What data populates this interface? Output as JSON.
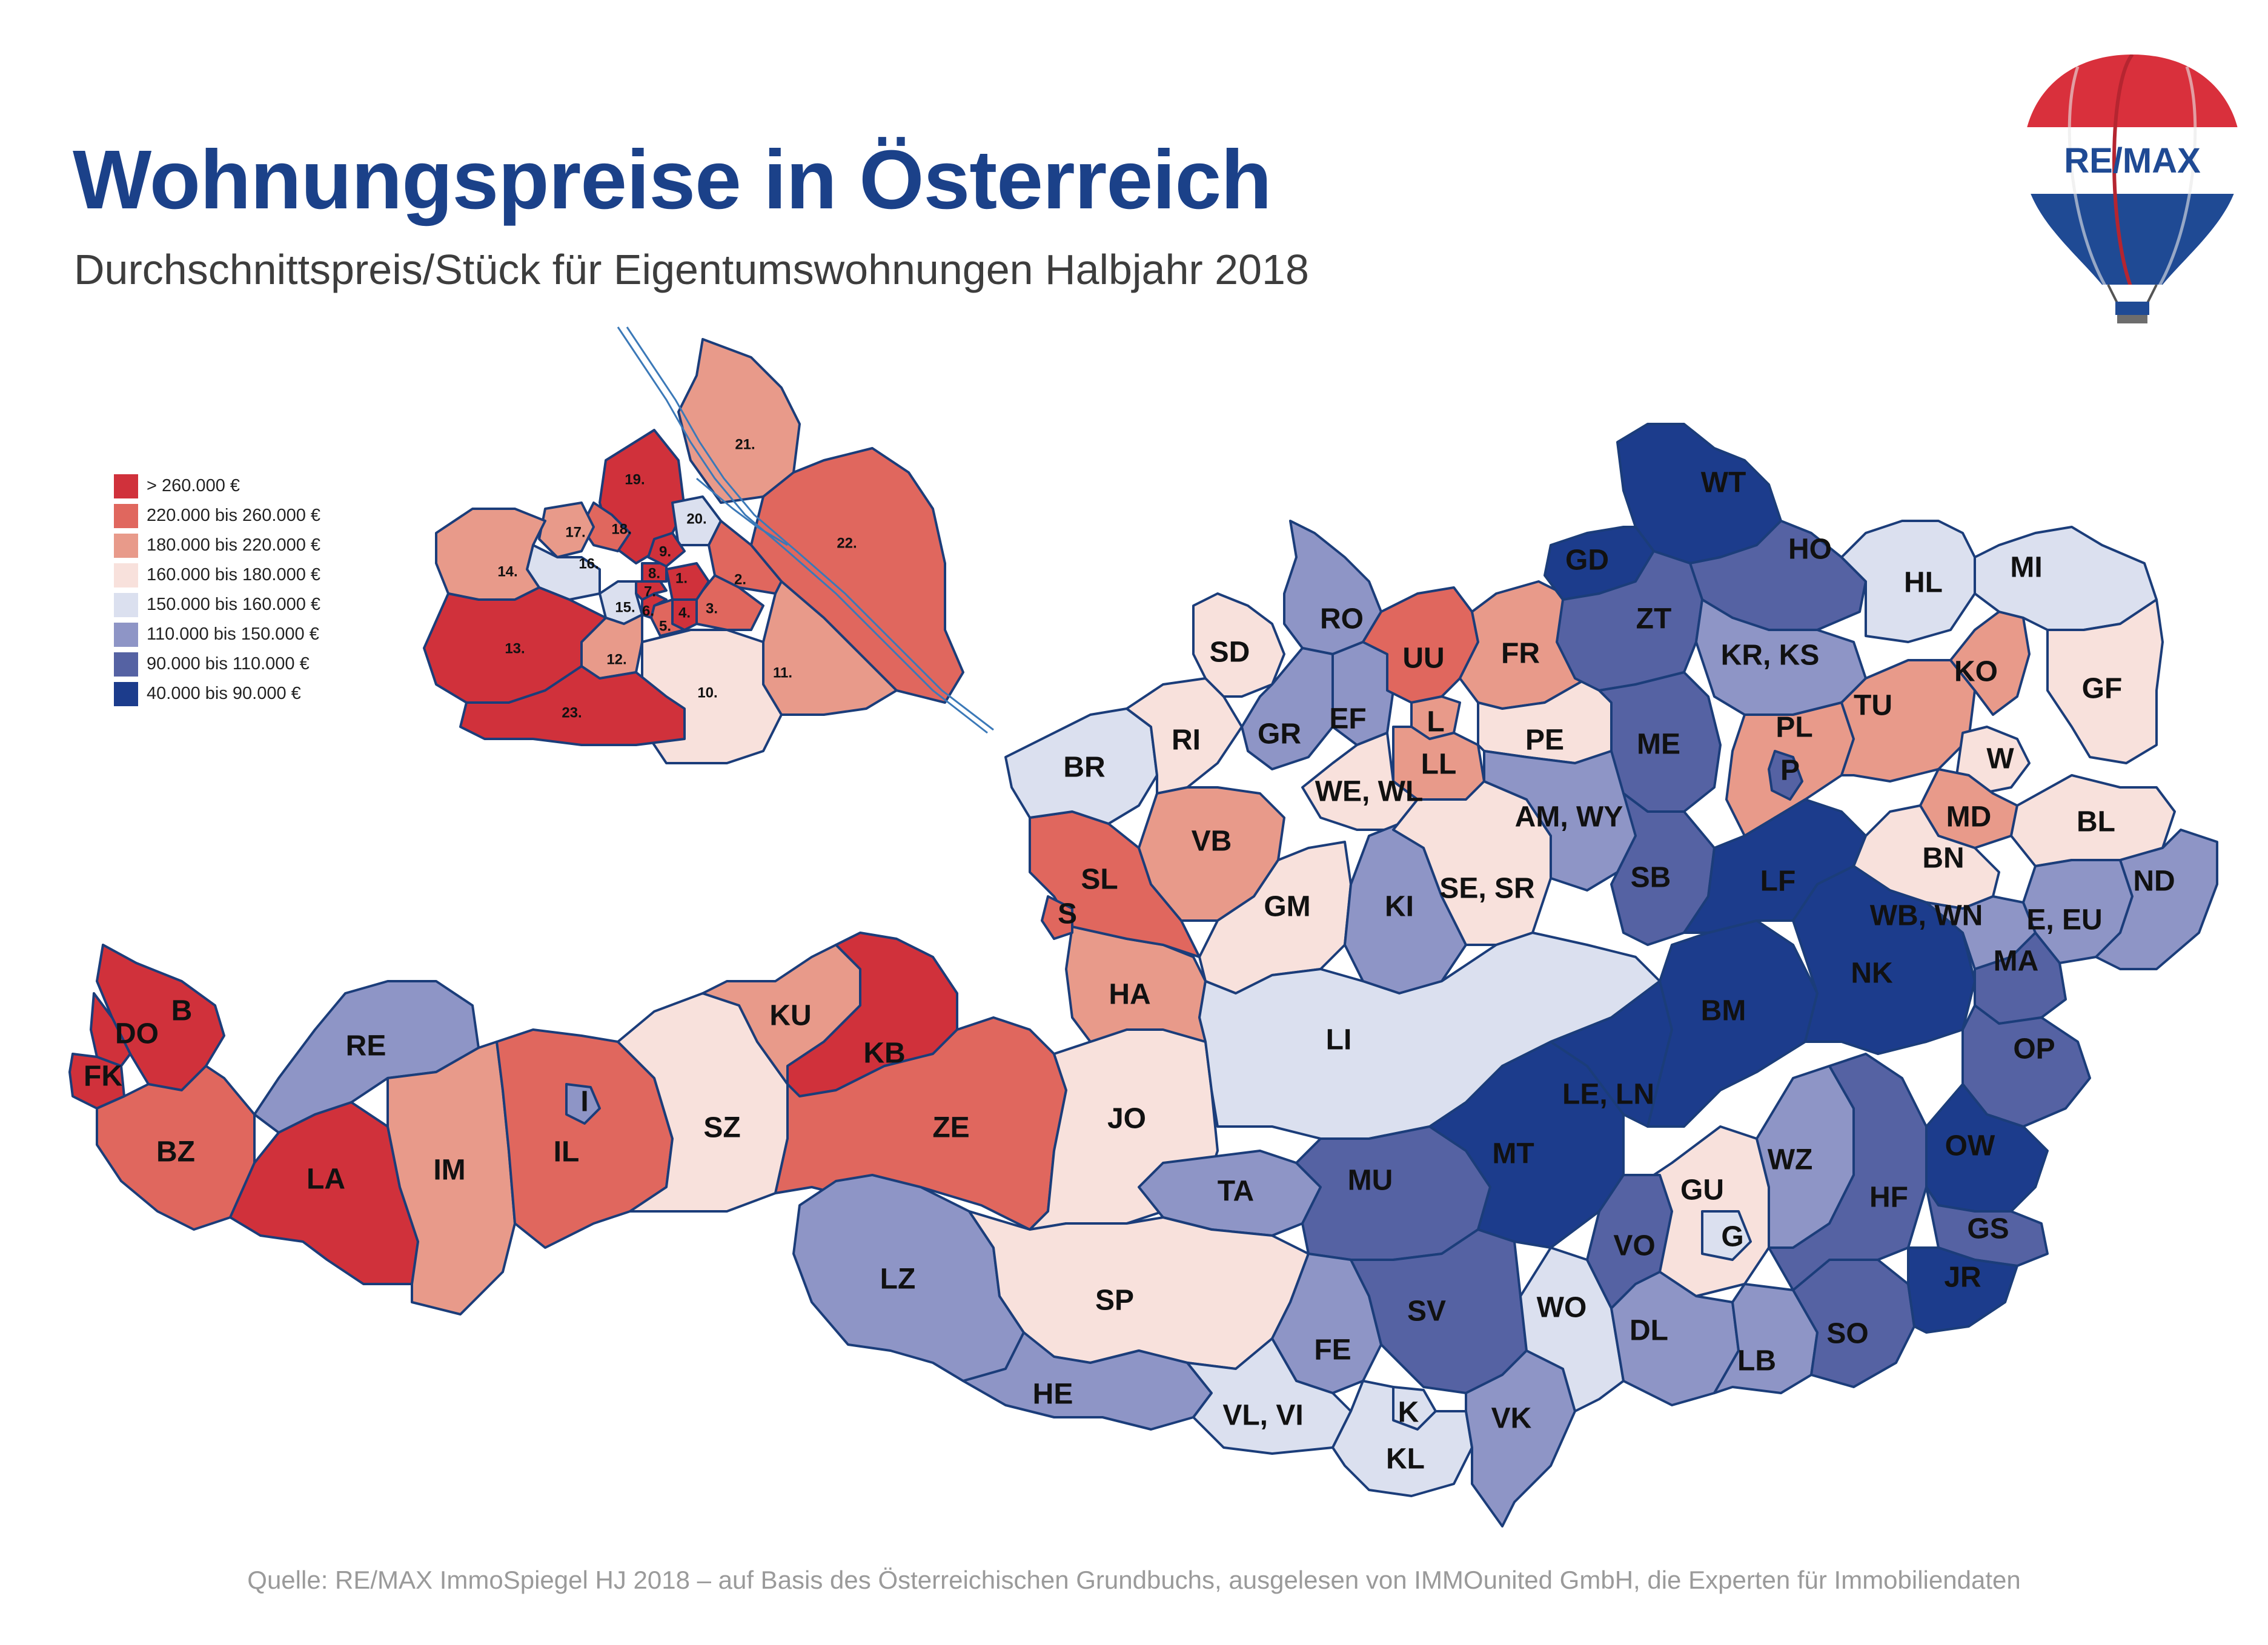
{
  "title": "Wohnungspreise in Österreich",
  "subtitle": "Durchschnittspreis/Stück für Eigentumswohnungen Halbjahr 2018",
  "logo_text": "RE/MAX",
  "source": "Quelle: RE/MAX ImmoSpiegel HJ 2018 – auf Basis des Österreichischen Grundbuchs, ausgelesen von IMMOunited GmbH, die Experten für Immobiliendaten",
  "legend": [
    {
      "label": "> 260.000 €",
      "color": "#d0313b"
    },
    {
      "label": "220.000 bis 260.000 €",
      "color": "#e0675e"
    },
    {
      "label": "180.000 bis 220.000 €",
      "color": "#e89a8a"
    },
    {
      "label": "160.000 bis 180.000 €",
      "color": "#f8e1dc"
    },
    {
      "label": "150.000 bis 160.000 €",
      "color": "#dbe0ef"
    },
    {
      "label": "110.000 bis 150.000 €",
      "color": "#8e95c6"
    },
    {
      "label": "90.000 bis 110.000 €",
      "color": "#5562a3"
    },
    {
      "label": "40.000 bis 90.000 €",
      "color": "#1c3c8c"
    }
  ],
  "regions": {
    "B": 0,
    "DO": 0,
    "FK": 0,
    "BZ": 1,
    "RE": 5,
    "LA": 0,
    "IM": 2,
    "IL": 1,
    "I": 5,
    "SZ": 3,
    "KU": 2,
    "KB": 0,
    "ZE": 1,
    "JO": 3,
    "HA": 2,
    "SL": 1,
    "S": 1,
    "BR": 4,
    "RI": 3,
    "SD": 3,
    "RO": 5,
    "GR": 5,
    "EF": 5,
    "UU": 1,
    "FR": 2,
    "L": 2,
    "LL": 2,
    "PE": 3,
    "WE, WL": 3,
    "VB": 2,
    "GM": 3,
    "KI": 5,
    "SE, SR": 3,
    "AM, WY": 5,
    "LI": 4,
    "TA": 5,
    "MU": 6,
    "LZ": 5,
    "SP": 3,
    "HE": 5,
    "FE": 5,
    "VL, VI": 4,
    "K": 4,
    "KL": 4,
    "SV": 6,
    "VK": 5,
    "WO": 4,
    "MT": 7,
    "LE, LN": 7,
    "BM": 7,
    "GU": 3,
    "G": 4,
    "VO": 6,
    "DL": 5,
    "LB": 5,
    "SO": 6,
    "WZ": 5,
    "HF": 6,
    "WT": 7,
    "GD": 7,
    "HO": 6,
    "ZT": 6,
    "ME": 6,
    "SB": 6,
    "KR, KS": 5,
    "PL": 2,
    "P": 6,
    "TU": 2,
    "KO": 2,
    "HL": 4,
    "MI": 4,
    "GF": 3,
    "W": 3,
    "LF": 7,
    "MD": 2,
    "BN": 3,
    "BL": 3,
    "NK": 7,
    "WB, WN": 5,
    "E, EU": 5,
    "ND": 5,
    "MA": 6,
    "OP": 6,
    "OW": 7,
    "GS": 6,
    "JR": 7
  },
  "vienna_districts": {
    "1.": 0,
    "2.": 1,
    "3.": 1,
    "4.": 0,
    "5.": 1,
    "6.": 0,
    "7.": 0,
    "8.": 0,
    "9.": 0,
    "10.": 3,
    "11.": 2,
    "12.": 2,
    "13.": 0,
    "14.": 2,
    "15.": 4,
    "16.": 4,
    "17.": 2,
    "18.": 1,
    "19.": 0,
    "20.": 4,
    "21.": 2,
    "22.": 1,
    "23.": 0
  }
}
